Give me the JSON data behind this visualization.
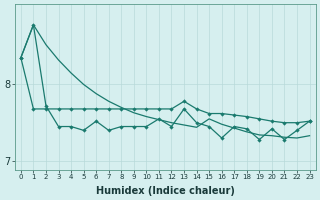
{
  "xlabel": "Humidex (Indice chaleur)",
  "x": [
    0,
    1,
    2,
    3,
    4,
    5,
    6,
    7,
    8,
    9,
    10,
    11,
    12,
    13,
    14,
    15,
    16,
    17,
    18,
    19,
    20,
    21,
    22,
    23
  ],
  "line_smooth": [
    8.35,
    8.78,
    8.52,
    8.32,
    8.15,
    8.0,
    7.88,
    7.78,
    7.7,
    7.63,
    7.58,
    7.54,
    7.5,
    7.47,
    7.44,
    7.55,
    7.48,
    7.43,
    7.38,
    7.34,
    7.33,
    7.31,
    7.3,
    7.33
  ],
  "line_zigzag": [
    8.35,
    8.78,
    7.72,
    7.45,
    7.45,
    7.4,
    7.52,
    7.4,
    7.45,
    7.45,
    7.45,
    7.55,
    7.45,
    7.68,
    7.5,
    7.45,
    7.3,
    7.45,
    7.42,
    7.28,
    7.42,
    7.28,
    7.4,
    7.52
  ],
  "line_flat": [
    8.35,
    7.68,
    7.68,
    7.68,
    7.68,
    7.68,
    7.68,
    7.68,
    7.68,
    7.68,
    7.68,
    7.68,
    7.68,
    7.78,
    7.68,
    7.62,
    7.62,
    7.6,
    7.58,
    7.55,
    7.52,
    7.5,
    7.5,
    7.52
  ],
  "ylim_min": 6.88,
  "ylim_max": 9.05,
  "yticks": [
    7,
    8
  ],
  "bg_color": "#d6efef",
  "line_color": "#1a7a6e",
  "grid_color": "#b8dada"
}
